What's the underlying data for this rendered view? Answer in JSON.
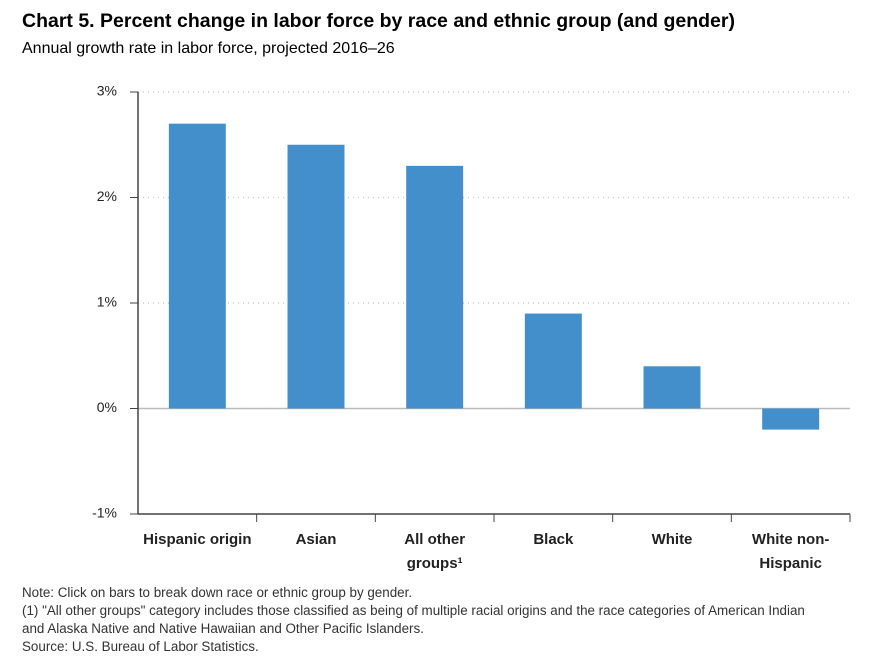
{
  "chart_data": {
    "type": "bar",
    "title": "Chart 5. Percent change in labor force by race and ethnic group (and gender)",
    "subtitle": "Annual growth rate in labor force, projected 2016–26",
    "categories": [
      "Hispanic origin",
      "Asian",
      "All other groups¹",
      "Black",
      "White",
      "White non-Hispanic"
    ],
    "values": [
      2.7,
      2.5,
      2.3,
      0.9,
      0.4,
      -0.2
    ],
    "color": "#428fcc",
    "ylim": [
      -1,
      3
    ],
    "yticks": [
      {
        "value": -1,
        "label": "-1%"
      },
      {
        "value": 0,
        "label": "0%"
      },
      {
        "value": 1,
        "label": "1%"
      },
      {
        "value": 2,
        "label": "2%"
      },
      {
        "value": 3,
        "label": "3%"
      }
    ],
    "grid": true,
    "notes": [
      "Note: Click on bars to break down race or ethnic group by gender.",
      "(1) \"All other groups\" category includes those classified as being of multiple racial origins and the race categories of American Indian and Alaska Native and Native Hawaiian and Other Pacific Islanders.",
      "Source: U.S. Bureau of Labor Statistics."
    ]
  }
}
